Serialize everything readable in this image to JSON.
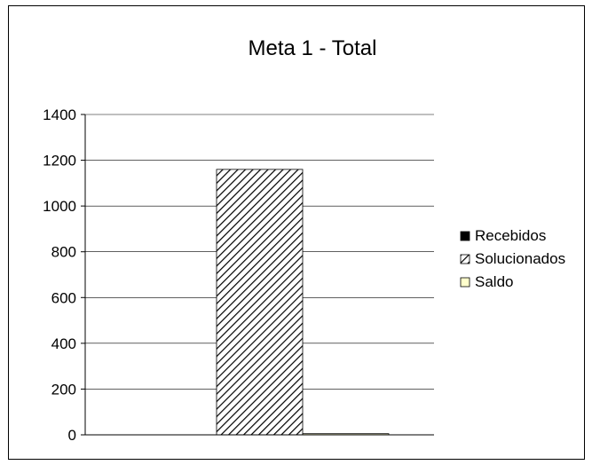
{
  "chart_data": {
    "type": "bar",
    "title": "Meta 1 - Total",
    "xlabel": "",
    "ylabel": "",
    "ylim": [
      0,
      1400
    ],
    "yticks": [
      0,
      200,
      400,
      600,
      800,
      1000,
      1200,
      1400
    ],
    "grid": true,
    "legend_position": "right",
    "categories": [
      ""
    ],
    "series": [
      {
        "name": "Recebidos",
        "values": [
          0
        ],
        "color": "#000000",
        "pattern": "solid"
      },
      {
        "name": "Solucionados",
        "values": [
          1160
        ],
        "color": "#000000",
        "pattern": "diagonal-hatch"
      },
      {
        "name": "Saldo",
        "values": [
          5
        ],
        "color": "#ffffcc",
        "pattern": "solid"
      }
    ]
  }
}
